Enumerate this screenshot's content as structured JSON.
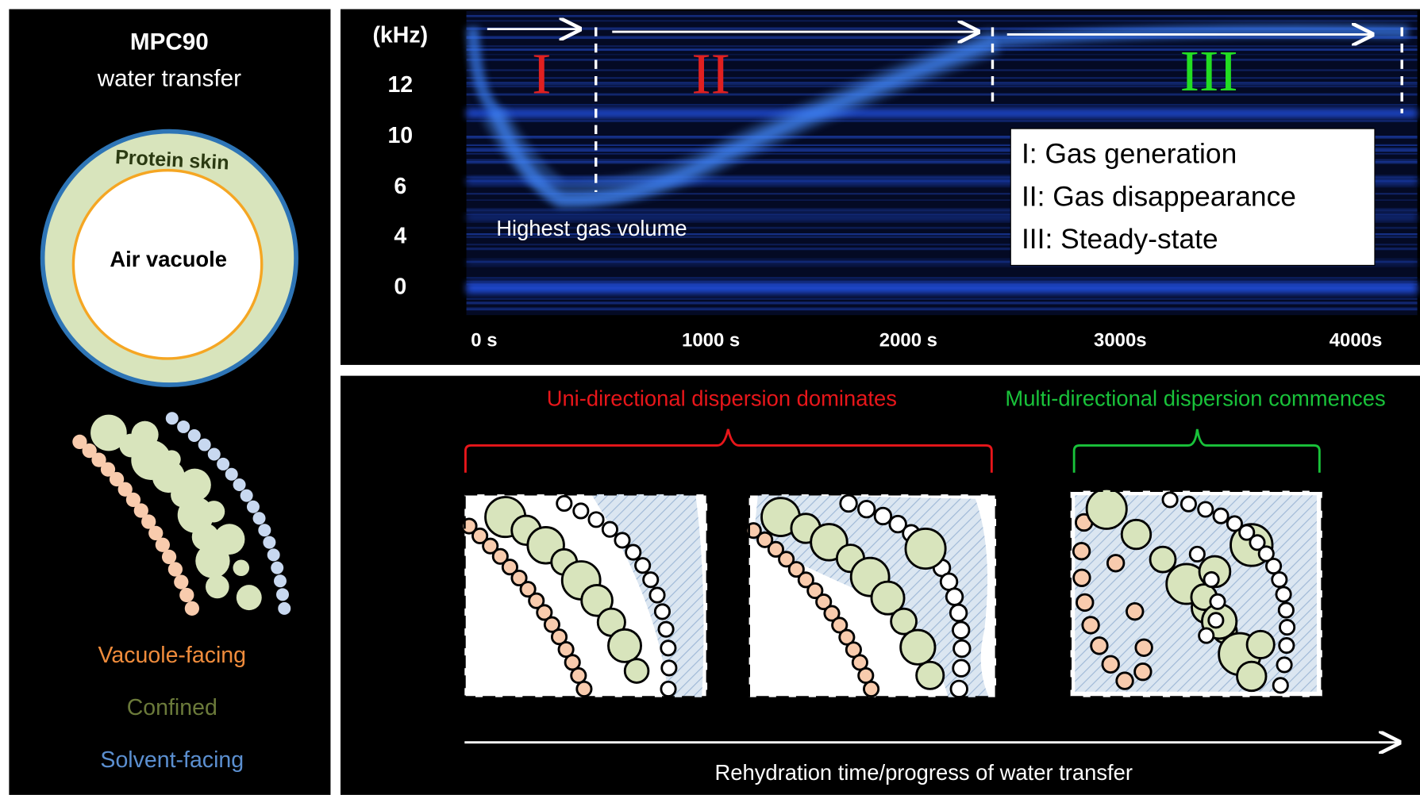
{
  "left_panel": {
    "title": "MPC90",
    "subtitle": "water transfer",
    "outer_label": "Protein skin",
    "inner_label": "Air vacuole",
    "legend": [
      "Vacuole-facing",
      "Confined",
      "Solvent-facing"
    ]
  },
  "spectrogram": {
    "unit_label": "(kHz)",
    "y_labels": [
      "12",
      "10",
      "6",
      "4",
      "0"
    ],
    "x_labels": [
      "0 s",
      "1000 s",
      "2000 s",
      "3000s",
      "4000s"
    ],
    "phases": [
      "I",
      "II",
      "III"
    ],
    "annotation": "Highest gas volume",
    "key": [
      "I: Gas generation",
      "II: Gas disappearance",
      "III: Steady-state"
    ]
  },
  "dispersion": {
    "left_label": "Uni-directional dispersion dominates",
    "right_label": "Multi-directional dispersion commences",
    "axis_label": "Rehydration time/progress of water transfer"
  }
}
